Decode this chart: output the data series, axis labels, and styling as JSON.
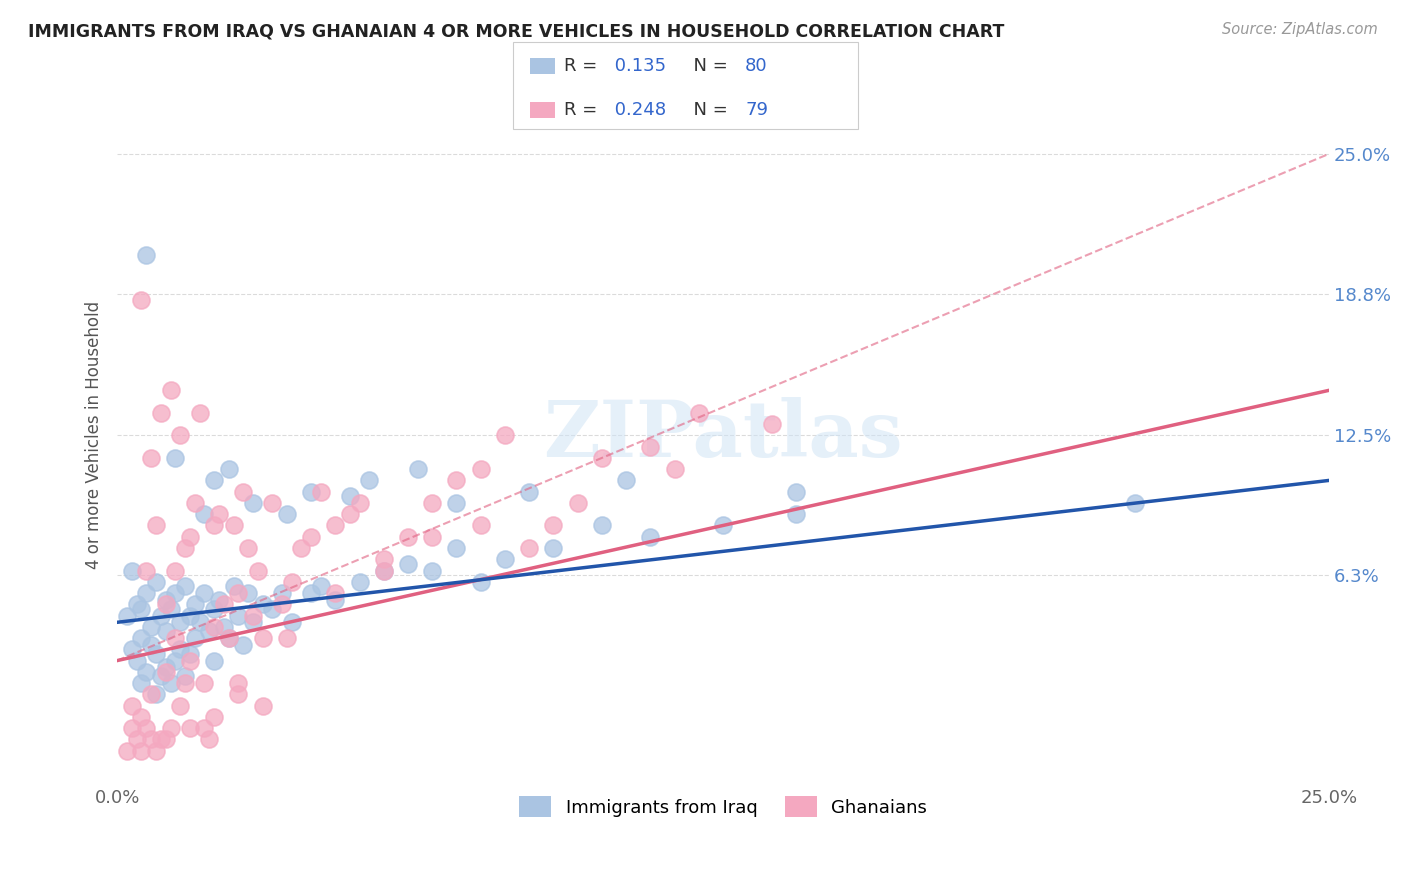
{
  "title": "IMMIGRANTS FROM IRAQ VS GHANAIAN 4 OR MORE VEHICLES IN HOUSEHOLD CORRELATION CHART",
  "source_text": "Source: ZipAtlas.com",
  "ylabel": "4 or more Vehicles in Household",
  "xlim": [
    0.0,
    25.0
  ],
  "ylim": [
    -3.0,
    28.0
  ],
  "yticks": [
    6.3,
    12.5,
    18.8,
    25.0
  ],
  "ytick_labels": [
    "6.3%",
    "12.5%",
    "18.8%",
    "25.0%"
  ],
  "series1_label": "Immigrants from Iraq",
  "series2_label": "Ghanaians",
  "series1_color": "#aac4e2",
  "series2_color": "#f4a8c0",
  "series1_line_color": "#2255aa",
  "series2_line_color": "#e06080",
  "background_color": "#ffffff",
  "grid_color": "#cccccc",
  "iraq_x": [
    0.2,
    0.3,
    0.3,
    0.4,
    0.4,
    0.5,
    0.5,
    0.5,
    0.6,
    0.6,
    0.7,
    0.7,
    0.8,
    0.8,
    0.9,
    0.9,
    1.0,
    1.0,
    1.0,
    1.1,
    1.1,
    1.2,
    1.2,
    1.3,
    1.3,
    1.4,
    1.4,
    1.5,
    1.5,
    1.6,
    1.6,
    1.7,
    1.8,
    1.9,
    2.0,
    2.0,
    2.1,
    2.2,
    2.3,
    2.4,
    2.5,
    2.6,
    2.7,
    2.8,
    3.0,
    3.2,
    3.4,
    3.6,
    4.0,
    4.2,
    4.5,
    5.0,
    5.5,
    6.0,
    6.5,
    7.0,
    7.5,
    8.0,
    9.0,
    10.0,
    11.0,
    12.5,
    14.0,
    1.2,
    1.8,
    2.0,
    2.3,
    2.8,
    3.5,
    4.0,
    4.8,
    5.2,
    6.2,
    7.0,
    8.5,
    10.5,
    14.0,
    21.0,
    0.6,
    0.8
  ],
  "iraq_y": [
    4.5,
    3.0,
    6.5,
    2.5,
    5.0,
    3.5,
    4.8,
    1.5,
    5.5,
    2.0,
    4.0,
    3.2,
    6.0,
    2.8,
    4.5,
    1.8,
    5.2,
    3.8,
    2.2,
    4.8,
    1.5,
    5.5,
    2.5,
    4.2,
    3.0,
    5.8,
    1.8,
    4.5,
    2.8,
    5.0,
    3.5,
    4.2,
    5.5,
    3.8,
    4.8,
    2.5,
    5.2,
    4.0,
    3.5,
    5.8,
    4.5,
    3.2,
    5.5,
    4.2,
    5.0,
    4.8,
    5.5,
    4.2,
    5.5,
    5.8,
    5.2,
    6.0,
    6.5,
    6.8,
    6.5,
    7.5,
    6.0,
    7.0,
    7.5,
    8.5,
    8.0,
    8.5,
    9.0,
    11.5,
    9.0,
    10.5,
    11.0,
    9.5,
    9.0,
    10.0,
    9.8,
    10.5,
    11.0,
    9.5,
    10.0,
    10.5,
    10.0,
    9.5,
    20.5,
    1.0
  ],
  "ghana_x": [
    0.2,
    0.3,
    0.3,
    0.4,
    0.5,
    0.5,
    0.6,
    0.6,
    0.7,
    0.7,
    0.8,
    0.8,
    0.9,
    0.9,
    1.0,
    1.0,
    1.1,
    1.1,
    1.2,
    1.2,
    1.3,
    1.3,
    1.4,
    1.4,
    1.5,
    1.5,
    1.6,
    1.7,
    1.8,
    1.9,
    2.0,
    2.0,
    2.1,
    2.2,
    2.3,
    2.4,
    2.5,
    2.6,
    2.7,
    2.8,
    2.9,
    3.0,
    3.2,
    3.4,
    3.6,
    3.8,
    4.0,
    4.2,
    4.5,
    4.8,
    5.0,
    5.5,
    6.0,
    6.5,
    7.0,
    7.5,
    8.0,
    8.5,
    9.0,
    10.0,
    11.0,
    12.0,
    13.5,
    1.0,
    1.5,
    2.0,
    2.5,
    3.0,
    0.5,
    0.7,
    1.8,
    2.5,
    3.5,
    4.5,
    5.5,
    6.5,
    7.5,
    9.5,
    11.5
  ],
  "ghana_y": [
    -1.5,
    -0.5,
    0.5,
    -1.0,
    18.5,
    0.0,
    6.5,
    -0.5,
    11.5,
    1.0,
    8.5,
    -1.5,
    13.5,
    -1.0,
    5.0,
    2.0,
    14.5,
    -0.5,
    3.5,
    6.5,
    12.5,
    0.5,
    7.5,
    1.5,
    2.5,
    8.0,
    9.5,
    13.5,
    1.5,
    -1.0,
    4.0,
    8.5,
    9.0,
    5.0,
    3.5,
    8.5,
    5.5,
    10.0,
    7.5,
    4.5,
    6.5,
    3.5,
    9.5,
    5.0,
    6.0,
    7.5,
    8.0,
    10.0,
    8.5,
    9.0,
    9.5,
    7.0,
    8.0,
    9.5,
    10.5,
    11.0,
    12.5,
    7.5,
    8.5,
    11.5,
    12.0,
    13.5,
    13.0,
    -1.0,
    -0.5,
    0.0,
    1.0,
    0.5,
    -1.5,
    -1.0,
    -0.5,
    1.5,
    3.5,
    5.5,
    6.5,
    8.0,
    8.5,
    9.5,
    11.0
  ],
  "iraq_line_x0": 0.0,
  "iraq_line_y0": 4.2,
  "iraq_line_x1": 25.0,
  "iraq_line_y1": 10.5,
  "ghana_line_x0": 0.0,
  "ghana_line_y0": 2.5,
  "ghana_line_x1": 25.0,
  "ghana_line_y1": 14.5,
  "ghana_dash_x0": 0.0,
  "ghana_dash_y0": 2.5,
  "ghana_dash_x1": 25.0,
  "ghana_dash_y1": 25.0
}
